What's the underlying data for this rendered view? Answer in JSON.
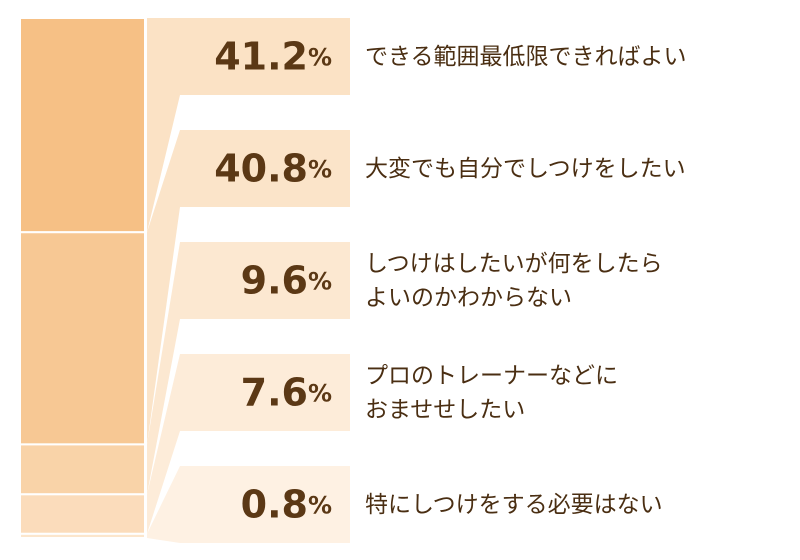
{
  "chart_data": {
    "type": "stacked-bar",
    "categories": [
      "できる範囲最低限できればよい",
      "大変でも自分でしつけをしたい",
      "しつけはしたいが何をしたら\nよいのかわからない",
      "プロのトレーナーなどに\nおませせしたい",
      "特にしつけをする必要はない"
    ],
    "values": [
      41.2,
      40.8,
      9.6,
      7.6,
      0.8
    ],
    "value_labels": [
      "41.2%",
      "40.8%",
      "9.6%",
      "7.6%",
      "0.8%"
    ],
    "colors": [
      "#f6c085",
      "#f7c894",
      "#f9d3a8",
      "#fbdcbb",
      "#fce6cc"
    ],
    "box_colors": [
      "#fbe2c5",
      "#fbe4c9",
      "#fce8d1",
      "#fdecd9",
      "#fef1e3"
    ],
    "ylim": [
      0,
      100
    ]
  }
}
